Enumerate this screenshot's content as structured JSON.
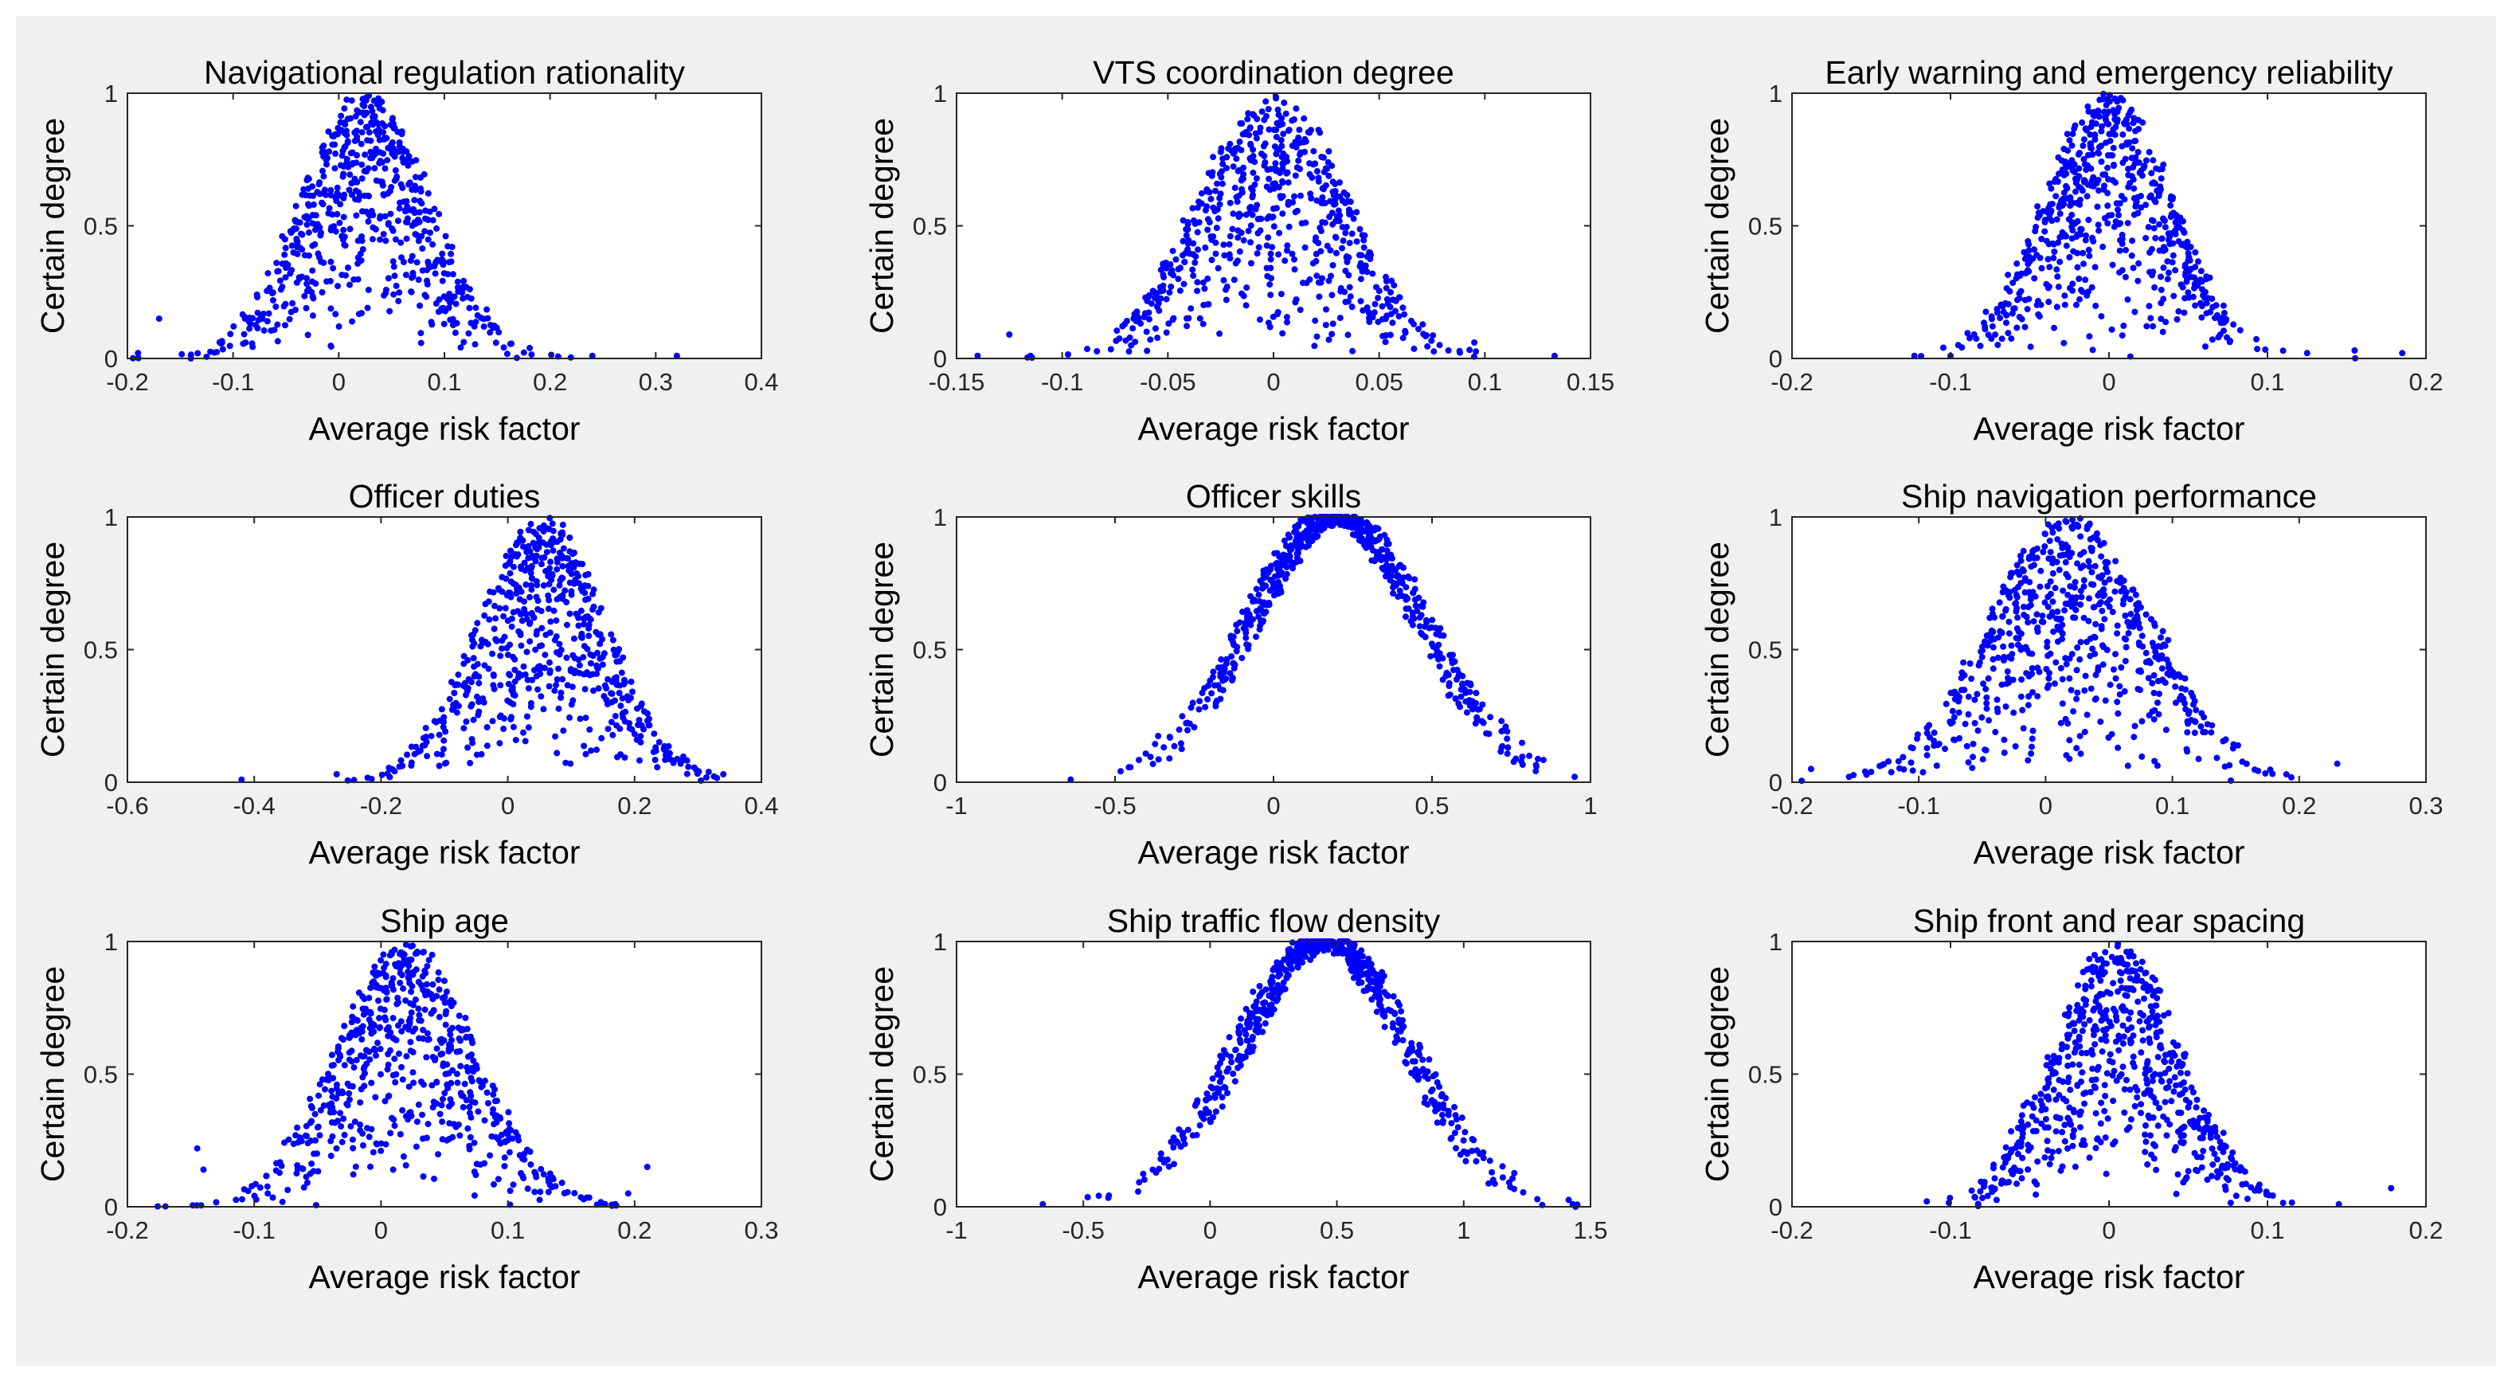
{
  "colors": {
    "marker": "#0000ff",
    "axes": "#262626",
    "plot_bg": "#ffffff",
    "figure_bg": "#f0f0f0"
  },
  "chart_data": [
    {
      "type": "scatter",
      "title": "Navigational regulation rationality",
      "xlabel": "Average risk factor",
      "ylabel": "Certain degree",
      "xlim": [
        -0.2,
        0.4
      ],
      "ylim": [
        0,
        1
      ],
      "xticks": [
        -0.2,
        -0.1,
        0,
        0.1,
        0.2,
        0.3,
        0.4
      ],
      "xtick_labels": [
        "-0.2",
        "-0.1",
        "0",
        "0.1",
        "0.2",
        "0.3",
        "0.4"
      ],
      "yticks": [
        0,
        0.5,
        1
      ],
      "ytick_labels": [
        "0",
        "0.5",
        "1"
      ],
      "distribution": {
        "n": 620,
        "center": 0.025,
        "spread": 0.06,
        "outliers": [
          [
            -0.19,
            0.02
          ],
          [
            -0.14,
            0.0
          ],
          [
            -0.17,
            0.15
          ],
          [
            0.24,
            0.01
          ],
          [
            0.32,
            0.01
          ]
        ]
      }
    },
    {
      "type": "scatter",
      "title": "VTS coordination degree",
      "xlabel": "Average risk factor",
      "ylabel": "Certain degree",
      "xlim": [
        -0.15,
        0.15
      ],
      "ylim": [
        0,
        1
      ],
      "xticks": [
        -0.15,
        -0.1,
        -0.05,
        0,
        0.05,
        0.1,
        0.15
      ],
      "xtick_labels": [
        "-0.15",
        "-0.1",
        "-0.05",
        "0",
        "0.05",
        "0.1",
        "0.15"
      ],
      "yticks": [
        0,
        0.5,
        1
      ],
      "ytick_labels": [
        "0",
        "0.5",
        "1"
      ],
      "distribution": {
        "n": 620,
        "center": 0.0,
        "spread": 0.035,
        "outliers": [
          [
            -0.14,
            0.01
          ],
          [
            -0.115,
            0.01
          ],
          [
            -0.125,
            0.09
          ],
          [
            0.095,
            0.06
          ],
          [
            0.133,
            0.01
          ]
        ]
      }
    },
    {
      "type": "scatter",
      "title": "Early warning and emergency reliability",
      "xlabel": "Average risk factor",
      "ylabel": "Certain degree",
      "xlim": [
        -0.2,
        0.2
      ],
      "ylim": [
        0,
        1
      ],
      "xticks": [
        -0.2,
        -0.1,
        0,
        0.1,
        0.2
      ],
      "xtick_labels": [
        "-0.2",
        "-0.1",
        "0",
        "0.1",
        "0.2"
      ],
      "yticks": [
        0,
        0.5,
        1
      ],
      "ytick_labels": [
        "0",
        "0.5",
        "1"
      ],
      "distribution": {
        "n": 620,
        "center": 0.0,
        "spread": 0.04,
        "outliers": [
          [
            0.125,
            0.02
          ],
          [
            0.155,
            0.03
          ],
          [
            0.185,
            0.02
          ],
          [
            -0.1,
            0.01
          ]
        ]
      }
    },
    {
      "type": "scatter",
      "title": "Officer duties",
      "xlabel": "Average risk factor",
      "ylabel": "Certain degree",
      "xlim": [
        -0.6,
        0.4
      ],
      "ylim": [
        0,
        1
      ],
      "xticks": [
        -0.6,
        -0.4,
        -0.2,
        0,
        0.2,
        0.4
      ],
      "xtick_labels": [
        "-0.6",
        "-0.4",
        "-0.2",
        "0",
        "0.2",
        "0.4"
      ],
      "yticks": [
        0,
        0.5,
        1
      ],
      "ytick_labels": [
        "0",
        "0.5",
        "1"
      ],
      "distribution": {
        "n": 620,
        "center": 0.055,
        "spread": 0.1,
        "outliers": [
          [
            -0.42,
            0.01
          ],
          [
            -0.27,
            0.03
          ],
          [
            0.34,
            0.03
          ]
        ]
      }
    },
    {
      "type": "scatter",
      "title": "Officer skills",
      "xlabel": "Average risk factor",
      "ylabel": "Certain degree",
      "xlim": [
        -1,
        1
      ],
      "ylim": [
        0,
        1
      ],
      "xticks": [
        -1,
        -0.5,
        0,
        0.5,
        1
      ],
      "xtick_labels": [
        "-1",
        "-0.5",
        "0",
        "0.5",
        "1"
      ],
      "yticks": [
        0,
        0.5,
        1
      ],
      "ytick_labels": [
        "0",
        "0.5",
        "1"
      ],
      "distribution": {
        "n": 620,
        "center": 0.2,
        "spread": 0.27,
        "outliers": [
          [
            -0.64,
            0.01
          ],
          [
            0.95,
            0.02
          ]
        ]
      }
    },
    {
      "type": "scatter",
      "title": "Ship navigation performance",
      "xlabel": "Average risk factor",
      "ylabel": "Certain degree",
      "xlim": [
        -0.2,
        0.3
      ],
      "ylim": [
        0,
        1
      ],
      "xticks": [
        -0.2,
        -0.1,
        0,
        0.1,
        0.2,
        0.3
      ],
      "xtick_labels": [
        "-0.2",
        "-0.1",
        "0",
        "0.1",
        "0.2",
        "0.3"
      ],
      "yticks": [
        0,
        0.5,
        1
      ],
      "ytick_labels": [
        "0",
        "0.5",
        "1"
      ],
      "distribution": {
        "n": 620,
        "center": 0.02,
        "spread": 0.065,
        "outliers": [
          [
            -0.185,
            0.05
          ],
          [
            -0.155,
            0.02
          ],
          [
            0.23,
            0.07
          ]
        ]
      }
    },
    {
      "type": "scatter",
      "title": "Ship age",
      "xlabel": "Average risk factor",
      "ylabel": "Certain degree",
      "xlim": [
        -0.2,
        0.3
      ],
      "ylim": [
        0,
        1
      ],
      "xticks": [
        -0.2,
        -0.1,
        0,
        0.1,
        0.2,
        0.3
      ],
      "xtick_labels": [
        "-0.2",
        "-0.1",
        "0",
        "0.1",
        "0.2",
        "0.3"
      ],
      "yticks": [
        0,
        0.5,
        1
      ],
      "ytick_labels": [
        "0",
        "0.5",
        "1"
      ],
      "distribution": {
        "n": 620,
        "center": 0.02,
        "spread": 0.055,
        "outliers": [
          [
            -0.145,
            0.22
          ],
          [
            -0.14,
            0.14
          ],
          [
            0.21,
            0.15
          ],
          [
            0.195,
            0.05
          ]
        ]
      }
    },
    {
      "type": "scatter",
      "title": "Ship traffic flow density",
      "xlabel": "Average risk factor",
      "ylabel": "Certain degree",
      "xlim": [
        -1,
        1.5
      ],
      "ylim": [
        0,
        1
      ],
      "xticks": [
        -1,
        -0.5,
        0,
        0.5,
        1,
        1.5
      ],
      "xtick_labels": [
        "-1",
        "-0.5",
        "0",
        "0.5",
        "1",
        "1.5"
      ],
      "yticks": [
        0,
        0.5,
        1
      ],
      "ytick_labels": [
        "0",
        "0.5",
        "1"
      ],
      "distribution": {
        "n": 620,
        "center": 0.45,
        "spread": 0.33,
        "outliers": [
          [
            -0.66,
            0.01
          ],
          [
            1.43,
            0.01
          ]
        ]
      }
    },
    {
      "type": "scatter",
      "title": "Ship front and rear spacing",
      "xlabel": "Average risk factor",
      "ylabel": "Certain degree",
      "xlim": [
        -0.2,
        0.2
      ],
      "ylim": [
        0,
        1
      ],
      "xticks": [
        -0.2,
        -0.1,
        0,
        0.1,
        0.2
      ],
      "xtick_labels": [
        "-0.2",
        "-0.1",
        "0",
        "0.1",
        "0.2"
      ],
      "yticks": [
        0,
        0.5,
        1
      ],
      "ytick_labels": [
        "0",
        "0.5",
        "1"
      ],
      "distribution": {
        "n": 620,
        "center": 0.005,
        "spread": 0.04,
        "outliers": [
          [
            0.145,
            0.01
          ],
          [
            0.178,
            0.07
          ],
          [
            -0.115,
            0.02
          ]
        ]
      }
    }
  ]
}
